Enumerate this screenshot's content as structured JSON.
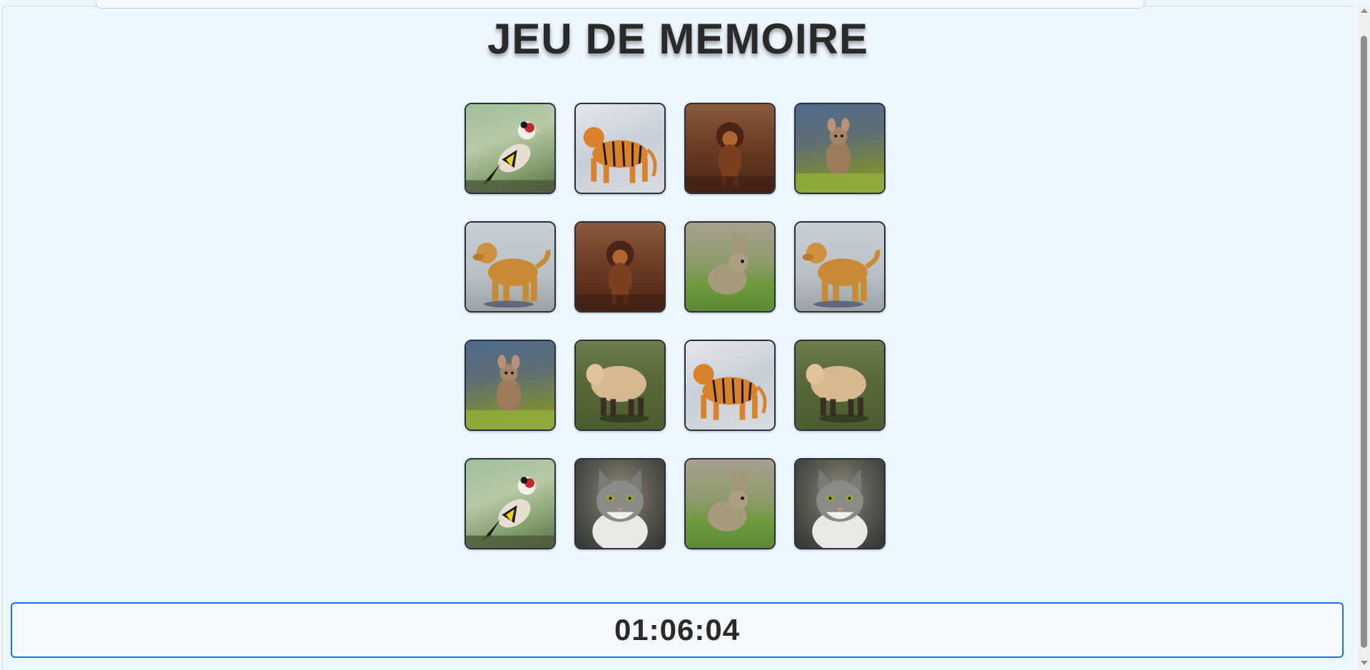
{
  "game": {
    "title": "JEU DE MEMOIRE",
    "timer": "01:06:04",
    "cards": [
      {
        "animal": "bird",
        "icon": "goldfinch-icon"
      },
      {
        "animal": "tiger",
        "icon": "tiger-icon"
      },
      {
        "animal": "lion",
        "icon": "lion-icon"
      },
      {
        "animal": "mouse",
        "icon": "mouse-icon"
      },
      {
        "animal": "dog",
        "icon": "golden-retriever-icon"
      },
      {
        "animal": "lion",
        "icon": "lion-icon"
      },
      {
        "animal": "rabbit",
        "icon": "rabbit-icon"
      },
      {
        "animal": "dog",
        "icon": "golden-retriever-icon"
      },
      {
        "animal": "mouse",
        "icon": "mouse-icon"
      },
      {
        "animal": "sheep",
        "icon": "sheep-icon"
      },
      {
        "animal": "tiger",
        "icon": "tiger-icon"
      },
      {
        "animal": "sheep",
        "icon": "sheep-icon"
      },
      {
        "animal": "bird",
        "icon": "goldfinch-icon"
      },
      {
        "animal": "cat",
        "icon": "cat-icon"
      },
      {
        "animal": "rabbit",
        "icon": "rabbit-icon"
      },
      {
        "animal": "cat",
        "icon": "cat-icon"
      }
    ]
  },
  "colors": {
    "page_background": "#eef6fe",
    "timer_border": "#1a73e8",
    "card_border": "#2b2f3a",
    "title_text": "#2a2a2a"
  }
}
